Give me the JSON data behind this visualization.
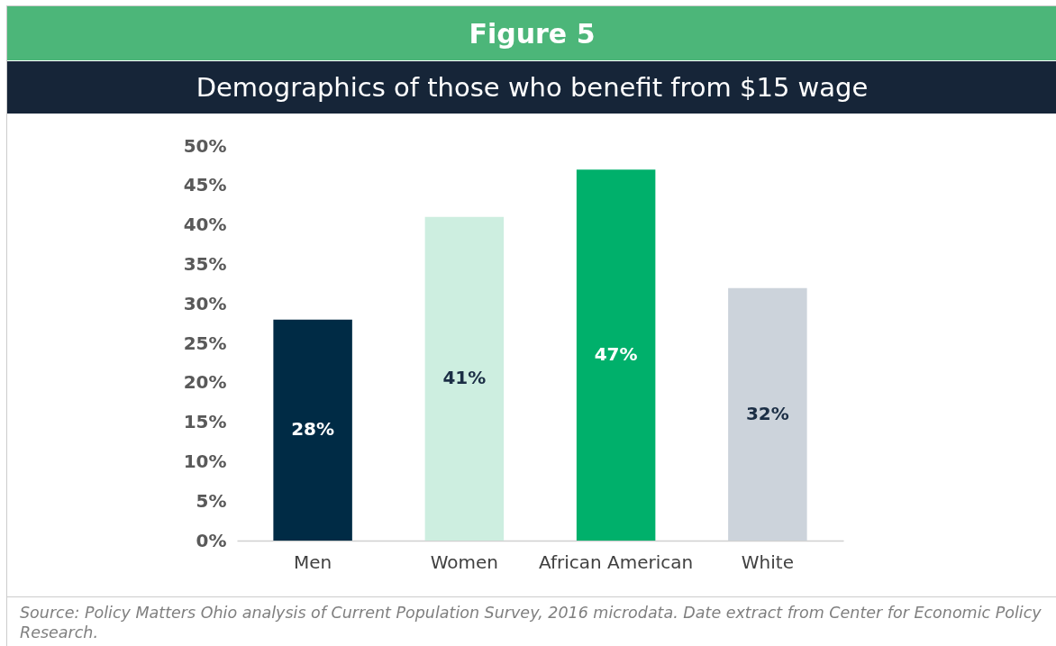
{
  "chart_data": {
    "type": "bar",
    "title": "Figure 5",
    "subtitle": "Demographics of those who benefit from $15 wage",
    "categories": [
      "Men",
      "Women",
      "African American",
      "White"
    ],
    "values": [
      28,
      41,
      47,
      32
    ],
    "value_labels": [
      "28%",
      "41%",
      "47%",
      "32%"
    ],
    "colors": [
      "#002b45",
      "#cdeee0",
      "#00b06b",
      "#ccd3db"
    ],
    "ylim": [
      0,
      50
    ],
    "yticks": [
      {
        "value": 0,
        "label": "0%"
      },
      {
        "value": 5,
        "label": "5%"
      },
      {
        "value": 10,
        "label": "10%"
      },
      {
        "value": 15,
        "label": "15%"
      },
      {
        "value": 20,
        "label": "20%"
      },
      {
        "value": 25,
        "label": "25%"
      },
      {
        "value": 30,
        "label": "30%"
      },
      {
        "value": 35,
        "label": "35%"
      },
      {
        "value": 40,
        "label": "40%"
      },
      {
        "value": 45,
        "label": "45%"
      },
      {
        "value": 50,
        "label": "50%"
      }
    ],
    "grid": false,
    "legend": false,
    "annotations": [
      "Source: Policy Matters Ohio analysis of Current Population Survey, 2016 microdata. Date extract from Center for Economic Policy Research."
    ]
  }
}
